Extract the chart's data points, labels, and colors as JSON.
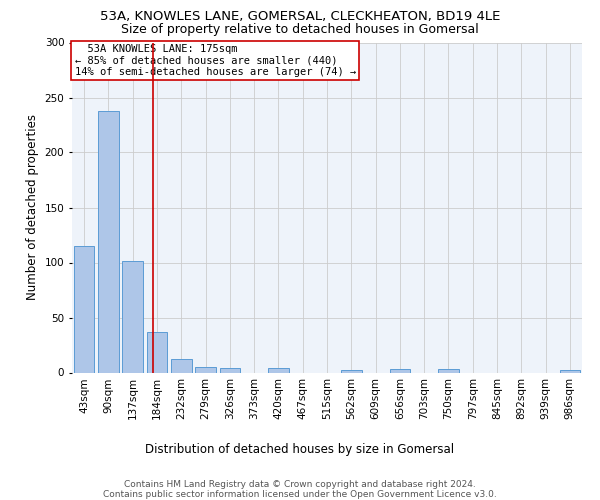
{
  "title": "53A, KNOWLES LANE, GOMERSAL, CLECKHEATON, BD19 4LE",
  "subtitle": "Size of property relative to detached houses in Gomersal",
  "xlabel_bottom": "Distribution of detached houses by size in Gomersal",
  "ylabel": "Number of detached properties",
  "bar_color": "#aec6e8",
  "bar_edge_color": "#5b9bd5",
  "grid_color": "#cccccc",
  "bg_color": "#eef3fa",
  "red_line_color": "#cc0000",
  "annotation_box_color": "#cc0000",
  "categories": [
    "43sqm",
    "90sqm",
    "137sqm",
    "184sqm",
    "232sqm",
    "279sqm",
    "326sqm",
    "373sqm",
    "420sqm",
    "467sqm",
    "515sqm",
    "562sqm",
    "609sqm",
    "656sqm",
    "703sqm",
    "750sqm",
    "797sqm",
    "845sqm",
    "892sqm",
    "939sqm",
    "986sqm"
  ],
  "values": [
    115,
    238,
    101,
    37,
    12,
    5,
    4,
    0,
    4,
    0,
    0,
    2,
    0,
    3,
    0,
    3,
    0,
    0,
    0,
    0,
    2
  ],
  "ylim": [
    0,
    300
  ],
  "yticks": [
    0,
    50,
    100,
    150,
    200,
    250,
    300
  ],
  "property_bin_index": 2.85,
  "annotation_text": "  53A KNOWLES LANE: 175sqm\n← 85% of detached houses are smaller (440)\n14% of semi-detached houses are larger (74) →",
  "footer_text": "Contains HM Land Registry data © Crown copyright and database right 2024.\nContains public sector information licensed under the Open Government Licence v3.0.",
  "title_fontsize": 9.5,
  "subtitle_fontsize": 9,
  "axis_label_fontsize": 8.5,
  "tick_fontsize": 7.5,
  "annotation_fontsize": 7.5,
  "footer_fontsize": 6.5
}
